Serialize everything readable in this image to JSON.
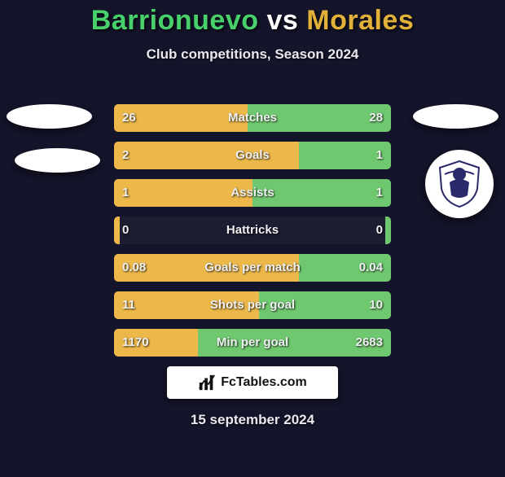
{
  "background_color": "#14142a",
  "title": {
    "player1": "Barrionuevo",
    "vs": "vs",
    "player2": "Morales",
    "fontsize": 34,
    "color_p1": "#48d16b",
    "color_p2": "#e2b13a"
  },
  "subtitle": {
    "text": "Club competitions, Season 2024",
    "fontsize": 17
  },
  "bar_colors": {
    "left": "#ecb84a",
    "right": "#6fc86f",
    "track": "rgba(255,255,255,0.04)"
  },
  "rows": [
    {
      "label": "Matches",
      "left": "26",
      "right": "28",
      "left_pct": 48.1,
      "right_pct": 51.9
    },
    {
      "label": "Goals",
      "left": "2",
      "right": "1",
      "left_pct": 66.7,
      "right_pct": 33.3
    },
    {
      "label": "Assists",
      "left": "1",
      "right": "1",
      "left_pct": 50.0,
      "right_pct": 50.0
    },
    {
      "label": "Hattricks",
      "left": "0",
      "right": "0",
      "left_pct": 2.0,
      "right_pct": 2.0
    },
    {
      "label": "Goals per match",
      "left": "0.08",
      "right": "0.04",
      "left_pct": 66.7,
      "right_pct": 33.3
    },
    {
      "label": "Shots per goal",
      "left": "11",
      "right": "10",
      "left_pct": 52.4,
      "right_pct": 47.6
    },
    {
      "label": "Min per goal",
      "left": "1170",
      "right": "2683",
      "left_pct": 30.4,
      "right_pct": 69.6
    }
  ],
  "fctables": {
    "text": "FcTables.com"
  },
  "date": {
    "text": "15 september 2024"
  }
}
